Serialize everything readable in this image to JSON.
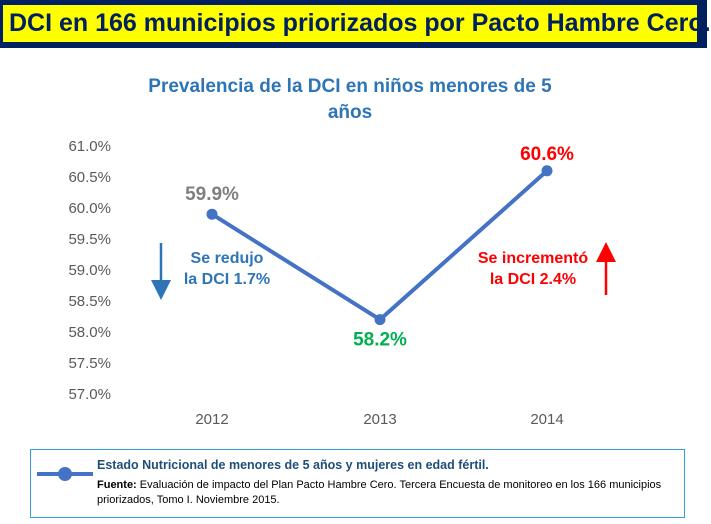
{
  "header": {
    "title": "DCI en 166 municipios priorizados por Pacto Hambre Cero."
  },
  "colors": {
    "banner_bg": "#002060",
    "banner_text_bg": "#ffff00",
    "line": "#4472c4",
    "decrease": "#2e75b6",
    "increase": "#ff0000",
    "label_2012": "#7f7f7f",
    "label_2013": "#00b050",
    "label_2014": "#ff0000"
  },
  "chart_data": {
    "type": "line",
    "title_line1": "Prevalencia de la DCI en niños menores de 5",
    "title_line2": "años",
    "categories": [
      "2012",
      "2013",
      "2014"
    ],
    "series": [
      {
        "name": "Estado Nutricional de menores de 5 años y mujeres en edad fértil.",
        "values": [
          59.9,
          58.2,
          60.6
        ]
      }
    ],
    "data_labels": [
      "59.9%",
      "58.2%",
      "60.6%"
    ],
    "y_ticks": [
      "61.0%",
      "60.5%",
      "60.0%",
      "59.5%",
      "59.0%",
      "58.5%",
      "58.0%",
      "57.5%",
      "57.0%"
    ],
    "ylim": [
      57.0,
      61.0
    ],
    "grid": false,
    "annotations": [
      {
        "line1": "Se redujo",
        "line2": "la DCI 1.7%",
        "arrow": "down"
      },
      {
        "line1": "Se incrementó",
        "line2": "la DCI 2.4%",
        "arrow": "up"
      }
    ]
  },
  "legend": {
    "series_label": "Estado Nutricional de menores de 5 años y mujeres en edad fértil.",
    "source_label": "Fuente:",
    "source_text": "Evaluación de impacto del Plan Pacto Hambre Cero. Tercera Encuesta de monitoreo en los 166 municipios  priorizados, Tomo I. Noviembre 2015."
  }
}
